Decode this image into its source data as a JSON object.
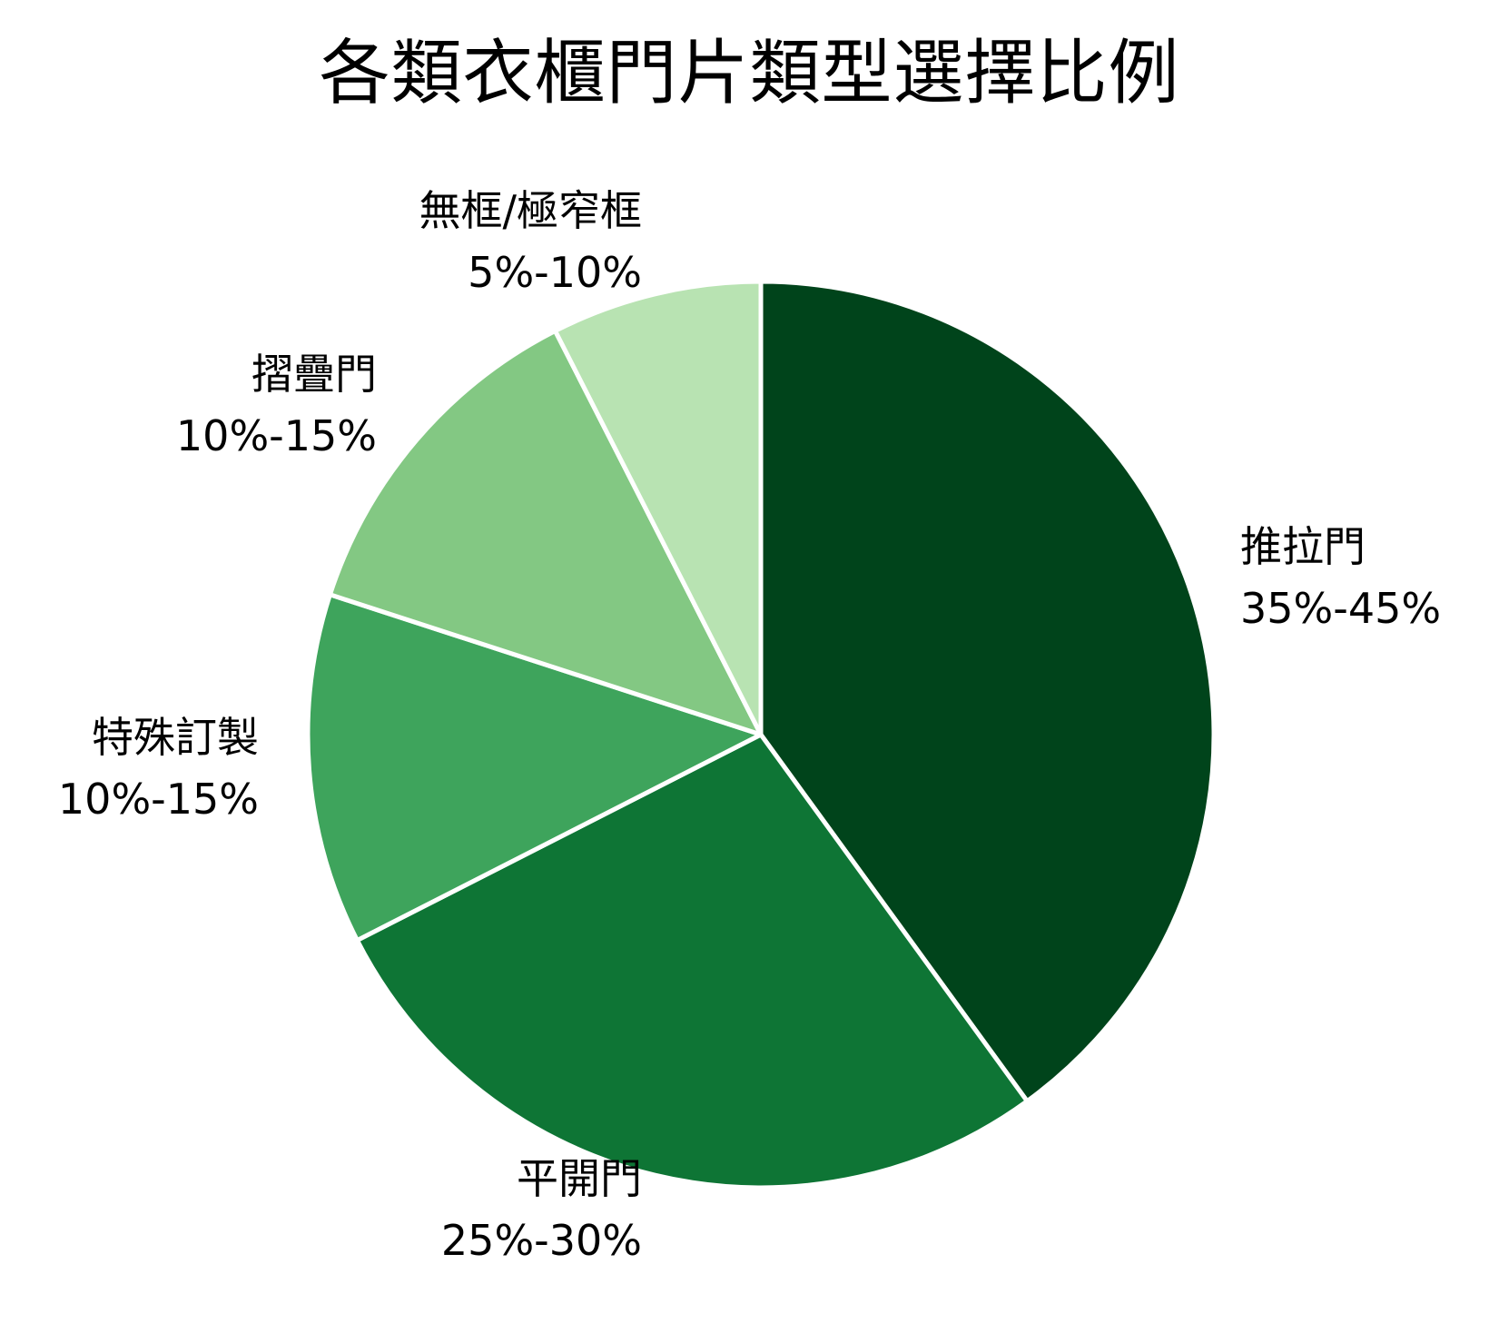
{
  "chart_data": {
    "type": "pie",
    "title": "各類衣櫃門片類型選擇比例",
    "categories": [
      "推拉門",
      "平開門",
      "特殊訂製",
      "摺疊門",
      "無框/極窄框"
    ],
    "range_labels": [
      "35%-45%",
      "25%-30%",
      "10%-15%",
      "10%-15%",
      "5%-10%"
    ],
    "values": [
      40,
      27.5,
      12.5,
      12.5,
      7.5
    ],
    "colors": [
      "#00441b",
      "#0e7535",
      "#3ea45c",
      "#83c883",
      "#b8e3b2"
    ],
    "start_angle": "12 o'clock",
    "direction": "clockwise",
    "legend": "none",
    "slice_border_color": "#ffffff"
  },
  "title": "各類衣櫃門片類型選擇比例",
  "labels": [
    {
      "name": "推拉門",
      "range": "35%-45%"
    },
    {
      "name": "平開門",
      "range": "25%-30%"
    },
    {
      "name": "特殊訂製",
      "range": "10%-15%"
    },
    {
      "name": "摺疊門",
      "range": "10%-15%"
    },
    {
      "name": "無框/極窄框",
      "range": "5%-10%"
    }
  ]
}
